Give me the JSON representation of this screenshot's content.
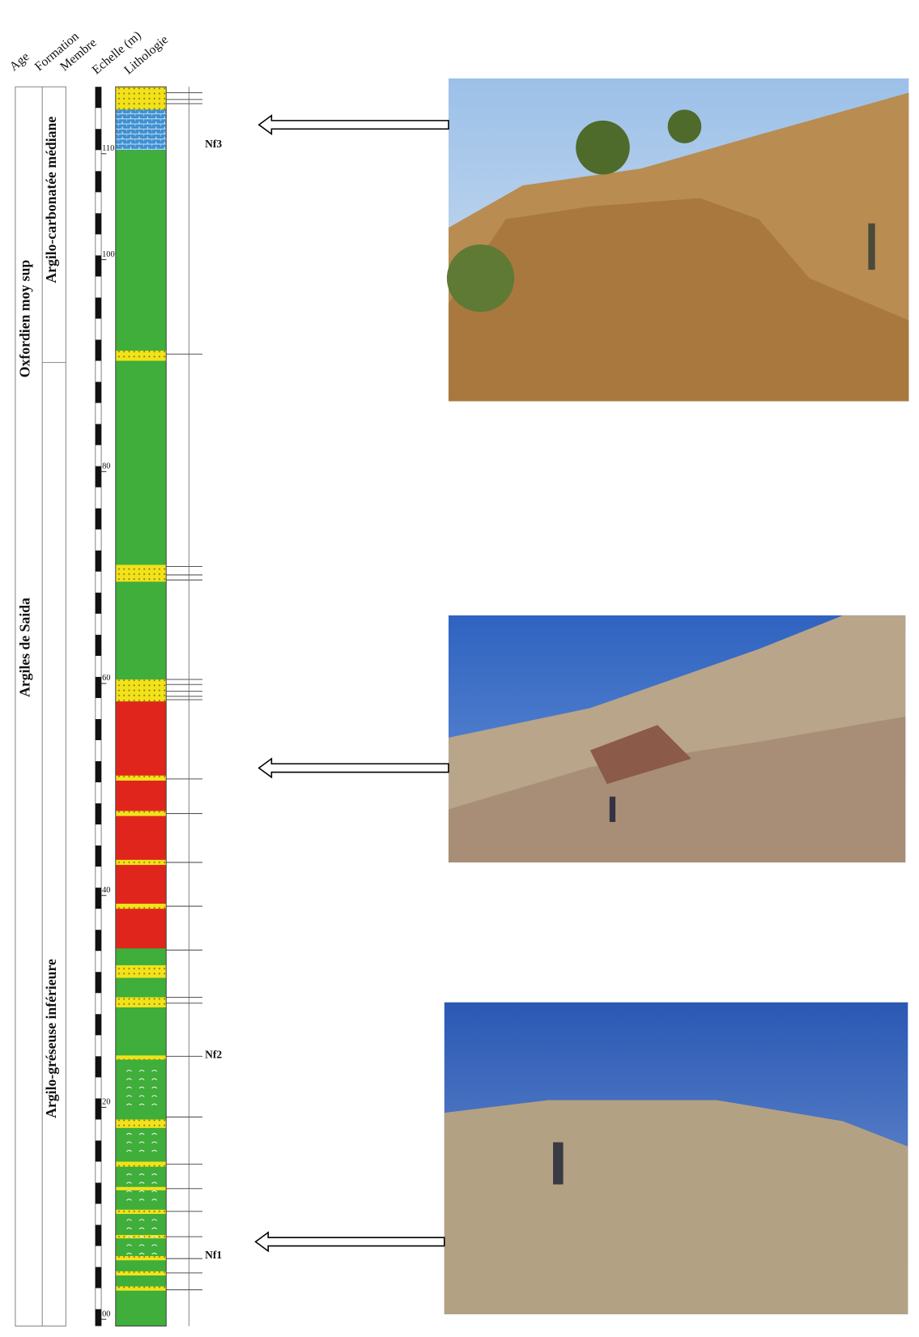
{
  "headers": [
    "Age",
    "Formation",
    "Membre",
    "Echelle (m)",
    "Lithologie"
  ],
  "age": "Oxfordien moy sup",
  "formation": "Argiles de Saida",
  "members": [
    "Argilo-carbonatée médiane",
    "Argilo-gréseuse inférieure"
  ],
  "scale": {
    "ticks": [
      {
        "value": 0,
        "label": "00"
      },
      20,
      40,
      60,
      80,
      100,
      110
    ]
  },
  "samples": [
    "Nf3",
    "Nf2",
    "Nf1"
  ]
}
